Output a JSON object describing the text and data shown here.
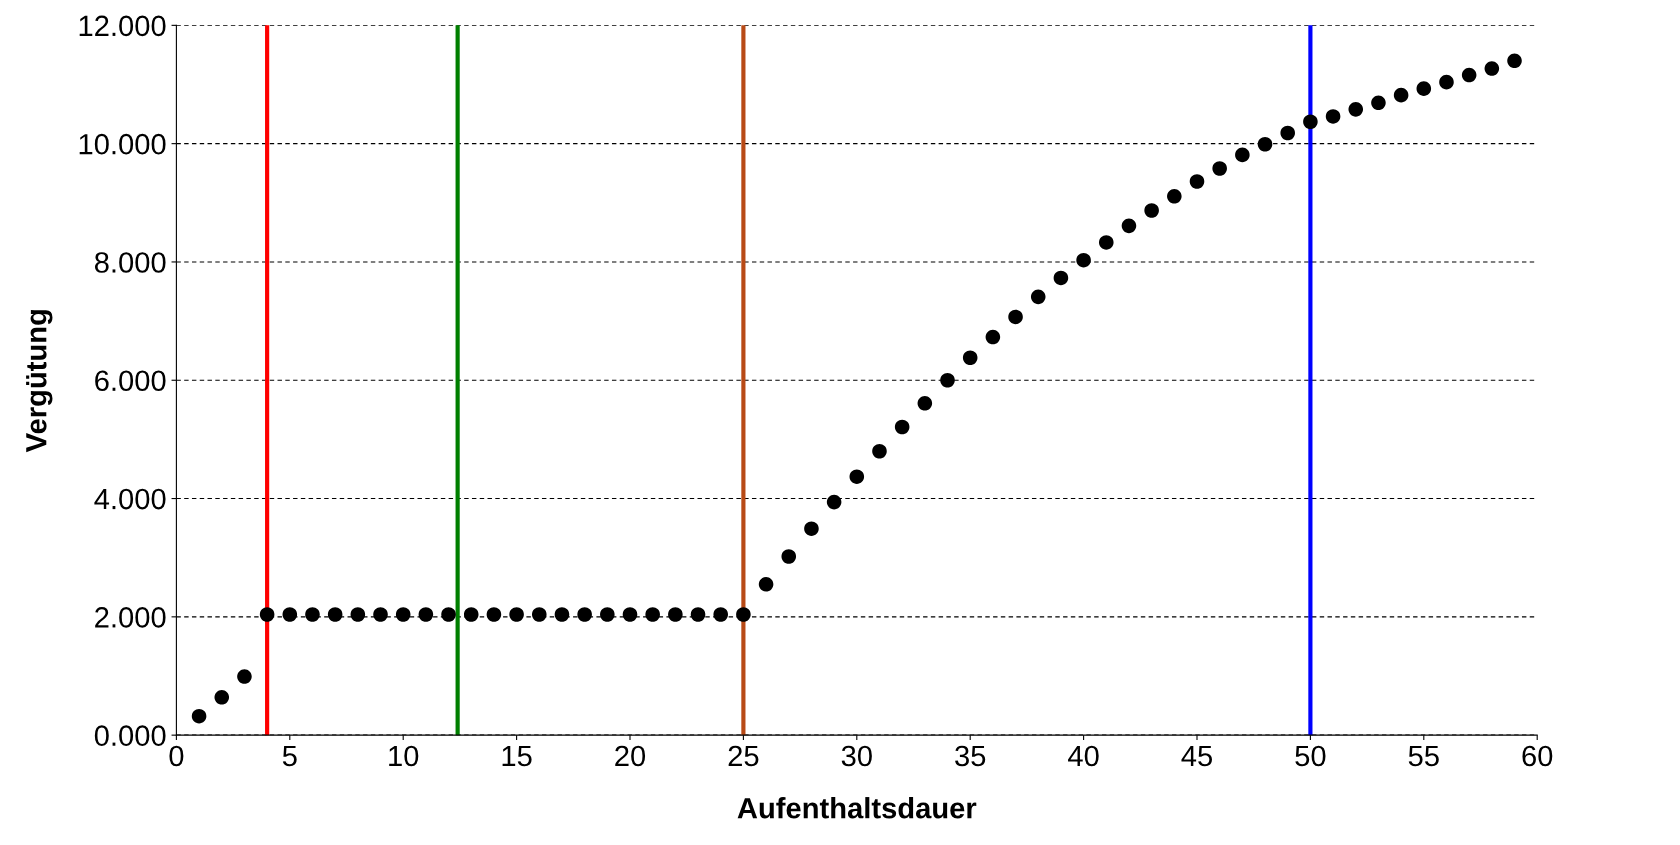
{
  "chart_data": {
    "type": "scatter",
    "xlabel": "Aufenthaltsdauer",
    "ylabel": "Vergütung",
    "x": [
      1,
      2,
      3,
      4,
      5,
      6,
      7,
      8,
      9,
      10,
      11,
      12,
      13,
      14,
      15,
      16,
      17,
      18,
      19,
      20,
      21,
      22,
      23,
      24,
      25,
      26,
      27,
      28,
      29,
      30,
      31,
      32,
      33,
      34,
      35,
      36,
      37,
      38,
      39,
      40,
      41,
      42,
      43,
      44,
      45,
      46,
      47,
      48,
      49,
      50,
      51,
      52,
      53,
      54,
      55,
      56,
      57,
      58,
      59
    ],
    "series": [
      {
        "color": "#000000",
        "values": [
          0.32,
          0.64,
          0.99,
          2.04,
          2.04,
          2.04,
          2.04,
          2.04,
          2.04,
          2.04,
          2.04,
          2.04,
          2.04,
          2.04,
          2.04,
          2.04,
          2.04,
          2.04,
          2.04,
          2.04,
          2.04,
          2.04,
          2.04,
          2.04,
          2.04,
          2.55,
          3.02,
          3.49,
          3.94,
          4.37,
          4.8,
          5.21,
          5.61,
          6.0,
          6.38,
          6.73,
          7.07,
          7.41,
          7.73,
          8.03,
          8.33,
          8.61,
          8.87,
          9.11,
          9.36,
          9.58,
          9.81,
          9.99,
          10.18,
          10.37,
          10.46,
          10.58,
          10.69,
          10.82,
          10.93,
          11.04,
          11.16,
          11.27,
          11.4
        ]
      }
    ],
    "marker": "circle",
    "xlim": [
      0,
      60
    ],
    "xticks": [
      0,
      5,
      10,
      15,
      20,
      25,
      30,
      35,
      40,
      45,
      50,
      55,
      60
    ],
    "ylim": [
      0,
      12
    ],
    "yticks": [
      {
        "value": 0,
        "label": "0.000"
      },
      {
        "value": 2,
        "label": "2.000"
      },
      {
        "value": 4,
        "label": "4.000"
      },
      {
        "value": 6,
        "label": "6.000"
      },
      {
        "value": 8,
        "label": "8.000"
      },
      {
        "value": 10,
        "label": "10.000"
      },
      {
        "value": 12,
        "label": "12.000"
      }
    ],
    "grid": "y",
    "legend": false,
    "ref_lines": [
      {
        "axis": "x",
        "value": 4,
        "color": "#ff0000"
      },
      {
        "axis": "x",
        "value": 12.4,
        "color": "#008000"
      },
      {
        "axis": "x",
        "value": 25,
        "color": "#b84a16"
      },
      {
        "axis": "x",
        "value": 50,
        "color": "#0000ff"
      }
    ]
  }
}
